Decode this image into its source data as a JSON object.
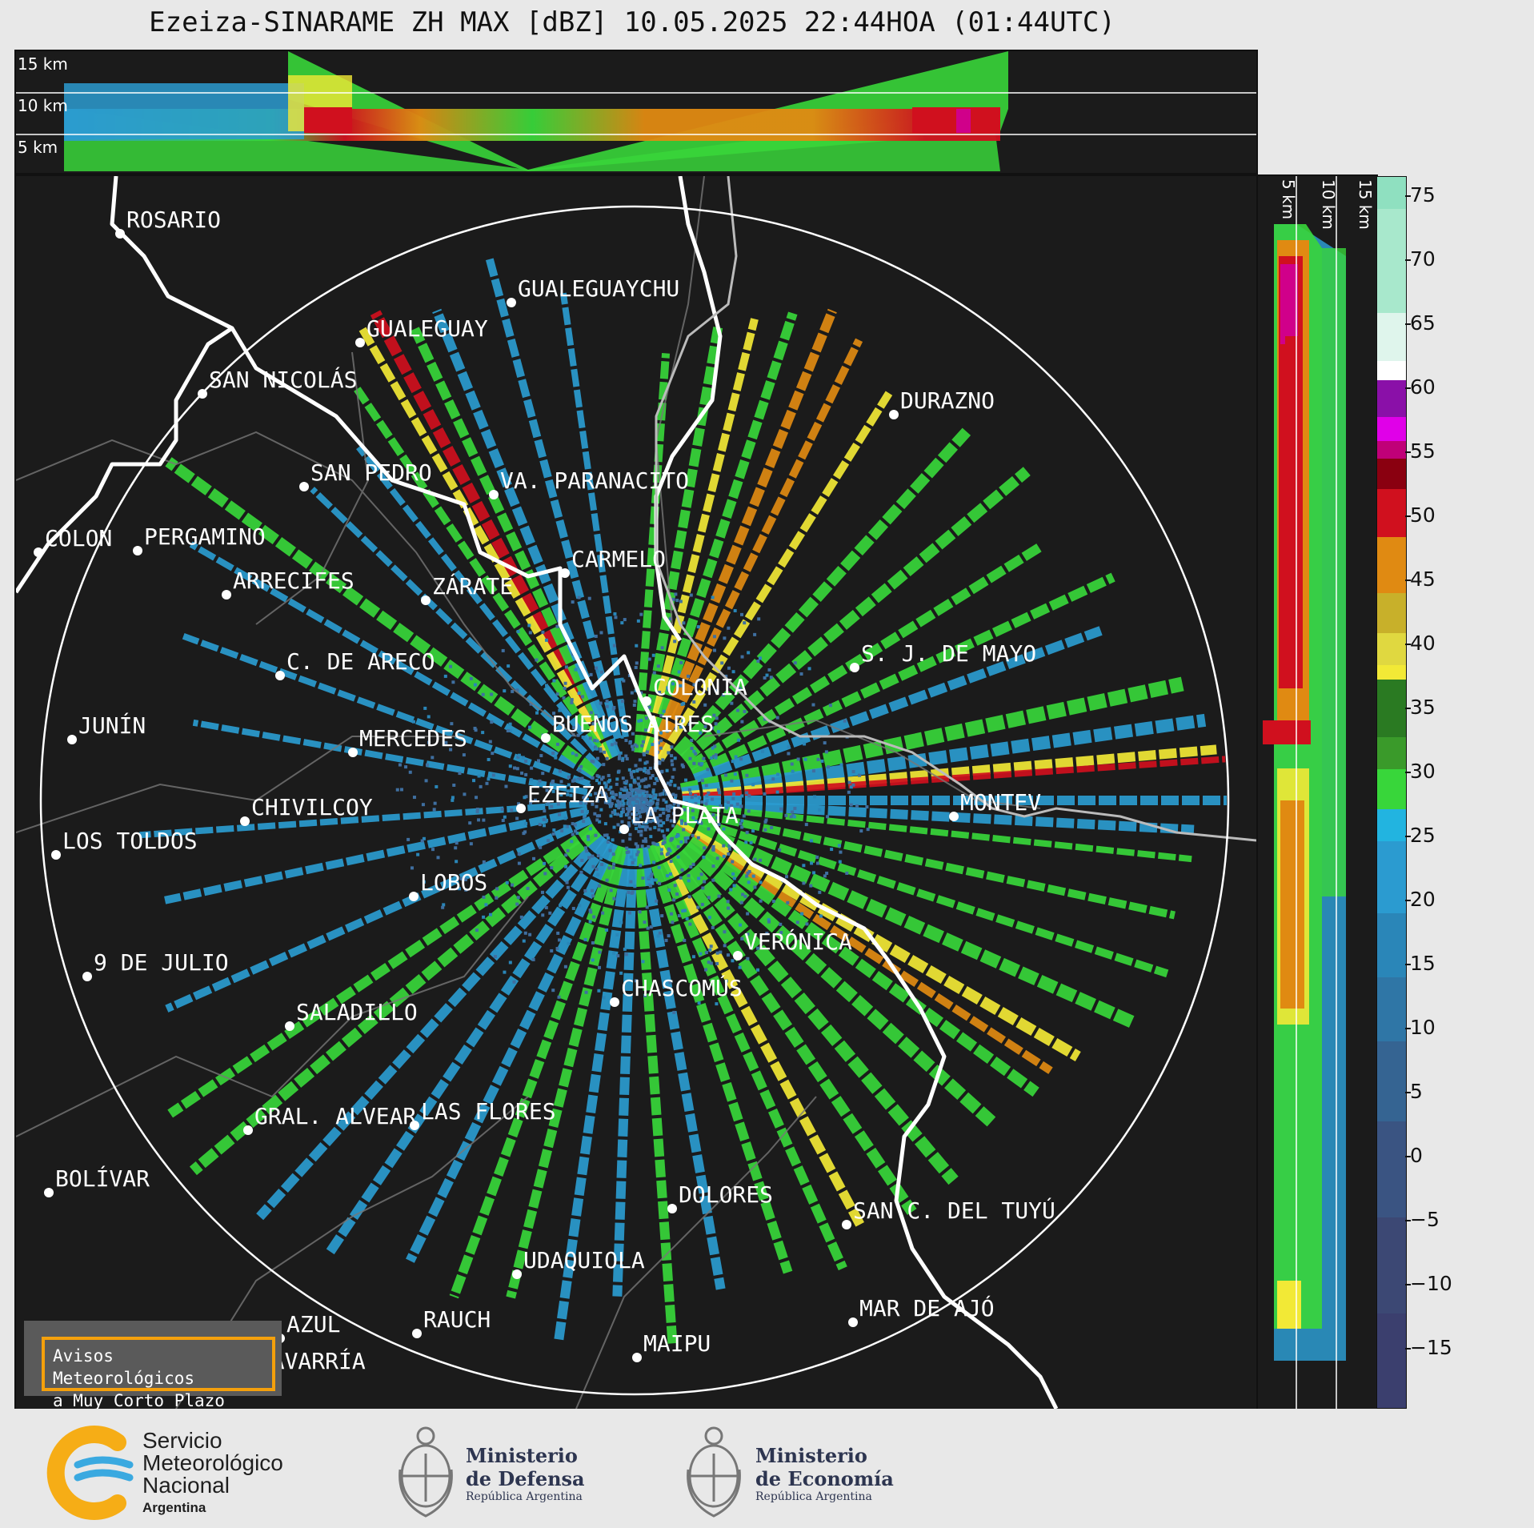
{
  "title": "Ezeiza-SINARAME ZH MAX [dBZ] 10.05.2025 22:44HOA (01:44UTC)",
  "top_panel": {
    "height_labels": [
      "15 km",
      "10 km",
      "5 km"
    ]
  },
  "side_panel": {
    "height_labels": [
      "5 km",
      "10 km",
      "15 km"
    ]
  },
  "colorbar": {
    "ticks": [
      "75",
      "70",
      "65",
      "60",
      "55",
      "50",
      "45",
      "40",
      "35",
      "30",
      "25",
      "20",
      "15",
      "10",
      "5",
      "0",
      "−5",
      "−10",
      "−15"
    ],
    "colors": {
      "min": "#3b3f6e",
      "blue": "#2b9bd0",
      "green": "#38d63a",
      "darkgreen": "#2a7a22",
      "yellow": "#f2e936",
      "orange": "#e08a12",
      "red": "#d0101e",
      "magenta": "#e000e8",
      "white": "#ffffff",
      "mint": "#8fe0c0"
    }
  },
  "cities": [
    {
      "name": "ROSARIO"
    },
    {
      "name": "GUALEGUAYCHU"
    },
    {
      "name": "GUALEGUAY"
    },
    {
      "name": "SAN NICOLÁS"
    },
    {
      "name": "DURAZNO"
    },
    {
      "name": "SAN PEDRO"
    },
    {
      "name": "VA. PARANACITO"
    },
    {
      "name": "COLON"
    },
    {
      "name": "PERGAMINO"
    },
    {
      "name": "CARMELO"
    },
    {
      "name": "ARRECIFES"
    },
    {
      "name": "ZÁRATE"
    },
    {
      "name": "S. J. DE MAYO"
    },
    {
      "name": "C. DE ARECO"
    },
    {
      "name": "COLONIA"
    },
    {
      "name": "JUNÍN"
    },
    {
      "name": "BUENOS AIRES"
    },
    {
      "name": "MERCEDES"
    },
    {
      "name": "EZEIZA"
    },
    {
      "name": "MONTEV"
    },
    {
      "name": "CHIVILCOY"
    },
    {
      "name": "LA PLATA"
    },
    {
      "name": "LOS TOLDOS"
    },
    {
      "name": "LOBOS"
    },
    {
      "name": "VERÓNICA"
    },
    {
      "name": "9 DE JULIO"
    },
    {
      "name": "CHASCOMÚS"
    },
    {
      "name": "SALADILLO"
    },
    {
      "name": "GRAL. ALVEAR"
    },
    {
      "name": "LAS FLORES"
    },
    {
      "name": "BOLÍVAR"
    },
    {
      "name": "DOLORES"
    },
    {
      "name": "SAN C. DEL TUYÚ"
    },
    {
      "name": "UDAQUIOLA"
    },
    {
      "name": "MAR DE AJÓ"
    },
    {
      "name": "AZUL"
    },
    {
      "name": "RAUCH"
    },
    {
      "name": "OLAVARRÍA"
    },
    {
      "name": "MAIPU"
    }
  ],
  "avisos": {
    "line1": "Avisos Meteorológicos",
    "line2": "a Muy Corto Plazo"
  },
  "footer": {
    "smn": {
      "line1": "Servicio",
      "line2": "Meteorológico",
      "line3": "Nacional",
      "line4": "Argentina"
    },
    "defensa": {
      "line1": "Ministerio",
      "line2": "de Defensa",
      "line3": "República Argentina"
    },
    "economia": {
      "line1": "Ministerio",
      "line2": "de Economía",
      "line3": "República Argentina"
    }
  }
}
